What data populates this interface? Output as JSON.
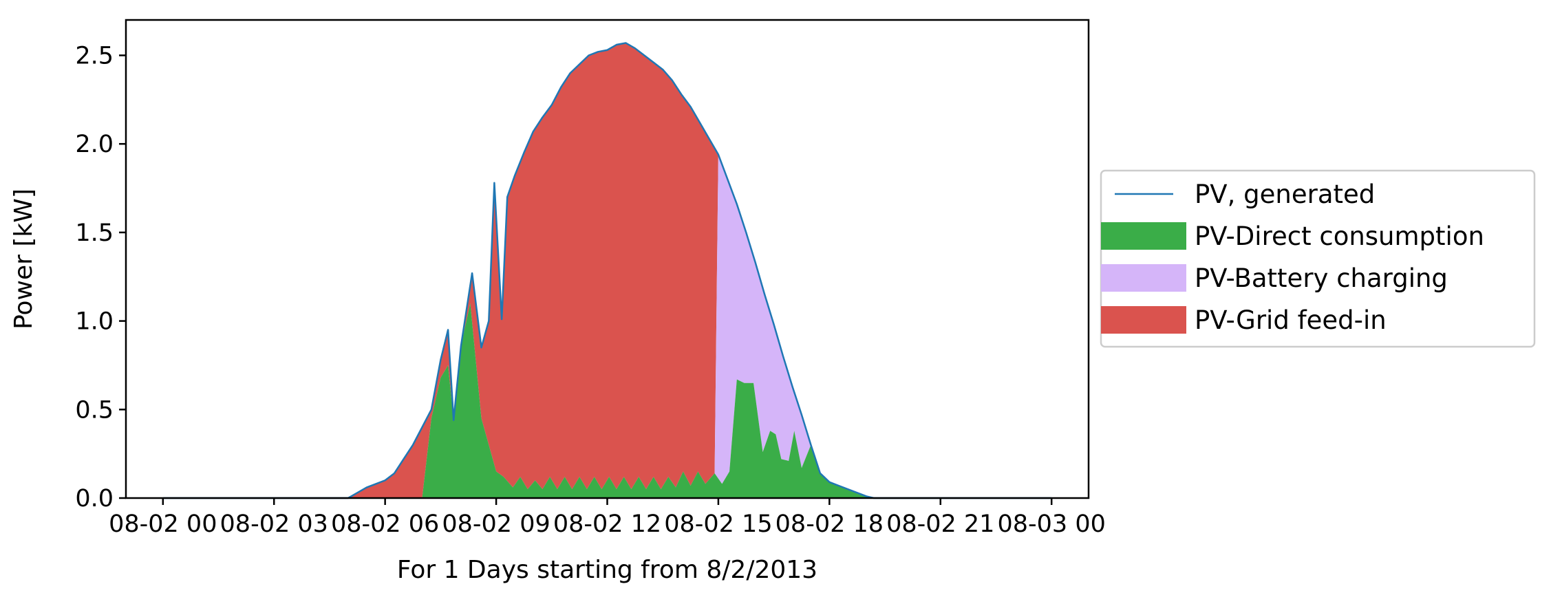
{
  "chart_data": {
    "type": "area",
    "title": "",
    "xlabel": "For 1 Days starting from 8/2/2013",
    "ylabel": "Power [kW]",
    "x_unit": "hours",
    "xlim": [
      -1.0,
      25.0
    ],
    "ylim": [
      0.0,
      2.7
    ],
    "x_ticks": [
      0,
      3,
      6,
      9,
      12,
      15,
      18,
      21,
      24
    ],
    "x_tick_labels": [
      "08-02 00",
      "08-02 03",
      "08-02 06",
      "08-02 09",
      "08-02 12",
      "08-02 15",
      "08-02 18",
      "08-02 21",
      "08-03 00"
    ],
    "y_ticks": [
      0.0,
      0.5,
      1.0,
      1.5,
      2.0,
      2.5
    ],
    "y_tick_labels": [
      "0.0",
      "0.5",
      "1.0",
      "1.5",
      "2.0",
      "2.5"
    ],
    "grid": false,
    "legend_position": "right-outside",
    "colors": {
      "generated": "#1f77b4",
      "direct": "#3aad48",
      "battery": "#d5b5f9",
      "grid": "#da534e"
    },
    "legend": [
      {
        "label": "PV, generated",
        "kind": "line",
        "series": "generated"
      },
      {
        "label": "PV-Direct consumption",
        "kind": "patch",
        "series": "direct"
      },
      {
        "label": "PV-Battery charging",
        "kind": "patch",
        "series": "battery"
      },
      {
        "label": "PV-Grid feed-in",
        "kind": "patch",
        "series": "grid"
      }
    ],
    "generated": [
      [
        0,
        0
      ],
      [
        5.0,
        0
      ],
      [
        5.25,
        0.03
      ],
      [
        5.5,
        0.06
      ],
      [
        5.75,
        0.08
      ],
      [
        6.0,
        0.1
      ],
      [
        6.25,
        0.14
      ],
      [
        6.5,
        0.22
      ],
      [
        6.75,
        0.3
      ],
      [
        7.0,
        0.4
      ],
      [
        7.25,
        0.5
      ],
      [
        7.5,
        0.78
      ],
      [
        7.7,
        0.95
      ],
      [
        7.85,
        0.44
      ],
      [
        8.05,
        0.86
      ],
      [
        8.35,
        1.27
      ],
      [
        8.6,
        0.85
      ],
      [
        8.8,
        1.0
      ],
      [
        8.95,
        1.78
      ],
      [
        9.15,
        1.01
      ],
      [
        9.3,
        1.7
      ],
      [
        9.5,
        1.82
      ],
      [
        9.75,
        1.95
      ],
      [
        10.0,
        2.07
      ],
      [
        10.25,
        2.15
      ],
      [
        10.5,
        2.22
      ],
      [
        10.75,
        2.32
      ],
      [
        11.0,
        2.4
      ],
      [
        11.25,
        2.45
      ],
      [
        11.5,
        2.5
      ],
      [
        11.75,
        2.52
      ],
      [
        12.0,
        2.53
      ],
      [
        12.25,
        2.56
      ],
      [
        12.5,
        2.57
      ],
      [
        12.75,
        2.54
      ],
      [
        13.0,
        2.5
      ],
      [
        13.25,
        2.46
      ],
      [
        13.5,
        2.42
      ],
      [
        13.75,
        2.36
      ],
      [
        14.0,
        2.28
      ],
      [
        14.25,
        2.21
      ],
      [
        14.5,
        2.12
      ],
      [
        14.75,
        2.03
      ],
      [
        15.0,
        1.94
      ],
      [
        15.25,
        1.8
      ],
      [
        15.5,
        1.66
      ],
      [
        15.75,
        1.5
      ],
      [
        16.0,
        1.33
      ],
      [
        16.25,
        1.15
      ],
      [
        16.5,
        0.98
      ],
      [
        16.75,
        0.8
      ],
      [
        17.0,
        0.63
      ],
      [
        17.25,
        0.47
      ],
      [
        17.5,
        0.3
      ],
      [
        17.75,
        0.14
      ],
      [
        18.0,
        0.09
      ],
      [
        18.25,
        0.07
      ],
      [
        18.5,
        0.05
      ],
      [
        18.75,
        0.03
      ],
      [
        19.0,
        0.01
      ],
      [
        19.2,
        0.0
      ],
      [
        24,
        0
      ]
    ],
    "direct": [
      [
        0,
        0
      ],
      [
        7.0,
        0
      ],
      [
        7.25,
        0.45
      ],
      [
        7.5,
        0.68
      ],
      [
        7.7,
        0.75
      ],
      [
        7.85,
        0.44
      ],
      [
        8.05,
        0.86
      ],
      [
        8.3,
        1.1
      ],
      [
        8.6,
        0.45
      ],
      [
        8.8,
        0.3
      ],
      [
        9.0,
        0.15
      ],
      [
        9.2,
        0.12
      ],
      [
        9.45,
        0.06
      ],
      [
        9.65,
        0.12
      ],
      [
        9.85,
        0.05
      ],
      [
        10.05,
        0.1
      ],
      [
        10.25,
        0.05
      ],
      [
        10.45,
        0.12
      ],
      [
        10.65,
        0.05
      ],
      [
        10.85,
        0.12
      ],
      [
        11.05,
        0.05
      ],
      [
        11.25,
        0.12
      ],
      [
        11.45,
        0.05
      ],
      [
        11.65,
        0.12
      ],
      [
        11.85,
        0.05
      ],
      [
        12.05,
        0.12
      ],
      [
        12.25,
        0.05
      ],
      [
        12.45,
        0.12
      ],
      [
        12.65,
        0.05
      ],
      [
        12.85,
        0.12
      ],
      [
        13.05,
        0.05
      ],
      [
        13.25,
        0.12
      ],
      [
        13.45,
        0.05
      ],
      [
        13.65,
        0.12
      ],
      [
        13.85,
        0.06
      ],
      [
        14.05,
        0.15
      ],
      [
        14.25,
        0.07
      ],
      [
        14.45,
        0.15
      ],
      [
        14.65,
        0.08
      ],
      [
        14.9,
        0.14
      ],
      [
        15.1,
        0.08
      ],
      [
        15.3,
        0.15
      ],
      [
        15.5,
        0.67
      ],
      [
        15.7,
        0.65
      ],
      [
        15.95,
        0.65
      ],
      [
        16.2,
        0.26
      ],
      [
        16.4,
        0.38
      ],
      [
        16.55,
        0.36
      ],
      [
        16.7,
        0.22
      ],
      [
        16.9,
        0.21
      ],
      [
        17.05,
        0.38
      ],
      [
        17.25,
        0.17
      ],
      [
        17.5,
        0.42
      ],
      [
        17.7,
        0.46
      ],
      [
        18.0,
        0.09
      ],
      [
        18.25,
        0.07
      ],
      [
        18.5,
        0.05
      ],
      [
        18.75,
        0.03
      ],
      [
        19.0,
        0.01
      ],
      [
        19.2,
        0.0
      ],
      [
        24,
        0
      ]
    ],
    "battery_start": 14.9,
    "battery_full": 15.0,
    "battery_end": 17.7
  }
}
